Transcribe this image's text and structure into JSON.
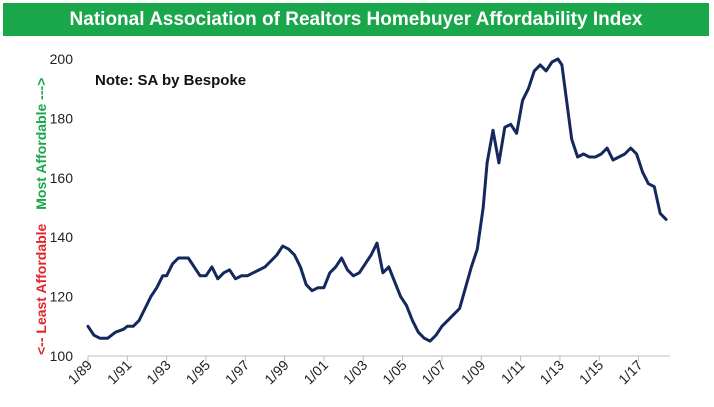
{
  "title": "National Association of Realtors Homebuyer Affordability Index",
  "note": "Note: SA by Bespoke",
  "side_label_low": "<-- Least Affordable",
  "side_label_high": "Most Affordable --->",
  "colors": {
    "title_bg": "#1aa64a",
    "line": "#14285e",
    "least": "#e0262a",
    "most": "#1aa64a"
  },
  "chart_data": {
    "type": "line",
    "title": "National Association of Realtors Homebuyer Affordability Index",
    "annotation": "Note: SA by Bespoke",
    "ylabel_low": "<-- Least Affordable",
    "ylabel_high": "Most Affordable --->",
    "ylim": [
      100,
      200
    ],
    "yticks": [
      100,
      120,
      140,
      160,
      180,
      200
    ],
    "xlim": [
      1989.0,
      2018.6
    ],
    "xtick_values": [
      1989,
      1991,
      1993,
      1995,
      1997,
      1999,
      2001,
      2003,
      2005,
      2007,
      2009,
      2011,
      2013,
      2015,
      2017
    ],
    "xtick_labels": [
      "1/89",
      "1/91",
      "1/93",
      "1/95",
      "1/97",
      "1/99",
      "1/01",
      "1/03",
      "1/05",
      "1/07",
      "1/09",
      "1/11",
      "1/13",
      "1/15",
      "1/17"
    ],
    "grid": false,
    "series": [
      {
        "x": [
          1989.0,
          1989.3,
          1989.6,
          1990.0,
          1990.4,
          1990.8,
          1991.0,
          1991.3,
          1991.6,
          1991.9,
          1992.2,
          1992.5,
          1992.8,
          1993.0,
          1993.3,
          1993.6,
          1993.9,
          1994.1,
          1994.4,
          1994.7,
          1995.0,
          1995.3,
          1995.6,
          1995.9,
          1996.2,
          1996.5,
          1996.8,
          1997.1,
          1997.4,
          1997.7,
          1998.0,
          1998.3,
          1998.6,
          1998.9,
          1999.2,
          1999.5,
          1999.8,
          2000.1,
          2000.4,
          2000.7,
          2001.0,
          2001.3,
          2001.6,
          2001.9,
          2002.2,
          2002.5,
          2002.8,
          2003.1,
          2003.4,
          2003.7,
          2004.0,
          2004.3,
          2004.6,
          2004.9,
          2005.2,
          2005.5,
          2005.8,
          2006.1,
          2006.4,
          2006.7,
          2007.0,
          2007.3,
          2007.6,
          2007.9,
          2008.2,
          2008.5,
          2008.8,
          2009.1,
          2009.3,
          2009.6,
          2009.9,
          2010.2,
          2010.5,
          2010.8,
          2011.1,
          2011.4,
          2011.7,
          2012.0,
          2012.3,
          2012.6,
          2012.9,
          2013.1,
          2013.3,
          2013.6,
          2013.9,
          2014.2,
          2014.5,
          2014.8,
          2015.1,
          2015.4,
          2015.7,
          2016.0,
          2016.3,
          2016.6,
          2016.9,
          2017.2,
          2017.5,
          2017.8,
          2018.1,
          2018.4
        ],
        "y": [
          110,
          107,
          106,
          106,
          108,
          109,
          110,
          110,
          112,
          116,
          120,
          123,
          127,
          127,
          131,
          133,
          133,
          133,
          130,
          127,
          127,
          130,
          126,
          128,
          129,
          126,
          127,
          127,
          128,
          129,
          130,
          132,
          134,
          137,
          136,
          134,
          130,
          124,
          122,
          123,
          123,
          128,
          130,
          133,
          129,
          127,
          128,
          131,
          134,
          138,
          128,
          130,
          125,
          120,
          117,
          112,
          108,
          106,
          105,
          107,
          110,
          112,
          114,
          116,
          123,
          130,
          136,
          150,
          165,
          176,
          165,
          177,
          178,
          175,
          186,
          190,
          196,
          198,
          196,
          199,
          200,
          198,
          188,
          173,
          167,
          168,
          167,
          167,
          168,
          170,
          166,
          167,
          168,
          170,
          168,
          162,
          158,
          157,
          148,
          146
        ]
      }
    ]
  }
}
